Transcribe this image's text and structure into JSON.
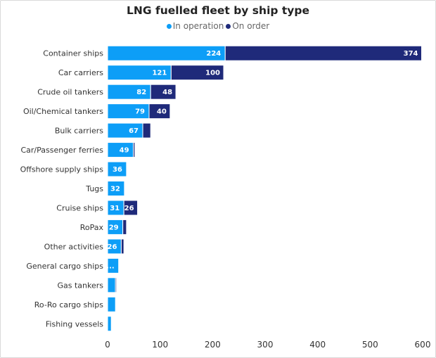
{
  "chart_data": {
    "type": "bar",
    "orientation": "horizontal",
    "stacked": true,
    "title": "LNG fuelled fleet by ship type",
    "xlabel": "",
    "ylabel": "",
    "xlim": [
      0,
      600
    ],
    "x_ticks": [
      "0",
      "100",
      "200",
      "300",
      "400",
      "500",
      "600"
    ],
    "legend_position": "top-center",
    "categories": [
      "Container ships",
      "Car carriers",
      "Crude oil tankers",
      "Oil/Chemical tankers",
      "Bulk carriers",
      "Car/Passenger ferries",
      "Offshore supply ships",
      "Tugs",
      "Cruise ships",
      "RoPax",
      "Other activities",
      "General cargo ships",
      "Gas tankers",
      "Ro-Ro cargo ships",
      "Fishing vessels"
    ],
    "series": [
      {
        "name": "In operation",
        "color": "#0d9ef7",
        "values": [
          224,
          121,
          82,
          79,
          67,
          49,
          36,
          32,
          31,
          29,
          26,
          21,
          15,
          15,
          7
        ],
        "labels": [
          "224",
          "121",
          "82",
          "79",
          "67",
          "49",
          "36",
          "32",
          "31",
          "29",
          "26",
          "...",
          "",
          "",
          ""
        ]
      },
      {
        "name": "On order",
        "color": "#1f2a7a",
        "values": [
          374,
          100,
          48,
          40,
          15,
          3,
          0,
          0,
          26,
          7,
          5,
          0,
          2,
          0,
          0
        ],
        "labels": [
          "374",
          "100",
          "48",
          "40",
          "",
          "",
          "",
          "",
          "26",
          "",
          "",
          "",
          "",
          "",
          ""
        ]
      }
    ]
  }
}
